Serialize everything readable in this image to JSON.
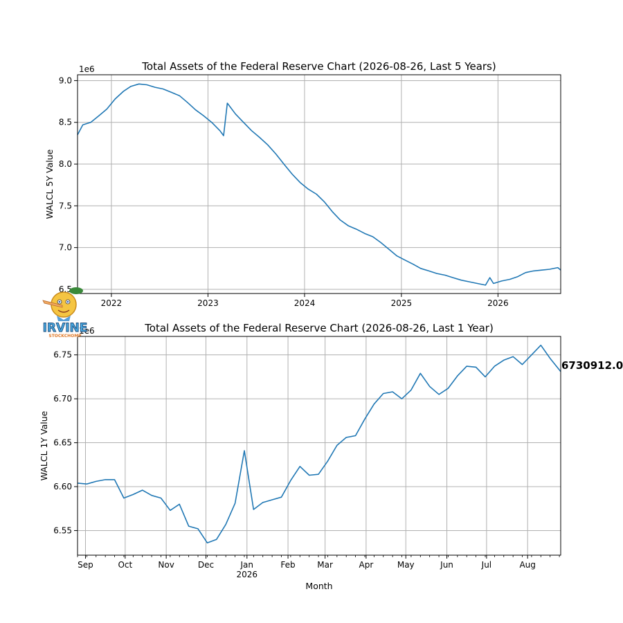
{
  "colors": {
    "line": "#1f77b4",
    "grid": "#b0b0b0",
    "axis": "#000000",
    "background": "#ffffff"
  },
  "logo": {
    "text": "IRVINE",
    "subtext": "STOCKCHOMP"
  },
  "chart_data": [
    {
      "type": "line",
      "title": "Total Assets of the Federal Reserve Chart (2026-08-26, Last 5 Years)",
      "xlabel": "",
      "ylabel": "WALCL 5Y Value",
      "y_multiplier": "1e6",
      "grid": true,
      "xlim": [
        "2021-08-26",
        "2026-08-26"
      ],
      "ylim": [
        6.45,
        9.07
      ],
      "x_ticks": [
        {
          "label": "2022",
          "x": "2022-01-01"
        },
        {
          "label": "2023",
          "x": "2023-01-01"
        },
        {
          "label": "2024",
          "x": "2024-01-01"
        },
        {
          "label": "2025",
          "x": "2025-01-01"
        },
        {
          "label": "2026",
          "x": "2026-01-01"
        }
      ],
      "y_ticks": [
        {
          "label": "6.5",
          "y": 6.5
        },
        {
          "label": "7.0",
          "y": 7.0
        },
        {
          "label": "7.5",
          "y": 7.5
        },
        {
          "label": "8.0",
          "y": 8.0
        },
        {
          "label": "8.5",
          "y": 8.5
        },
        {
          "label": "9.0",
          "y": 9.0
        }
      ],
      "series": [
        {
          "x": [
            "2021-08-26",
            "2021-09-15",
            "2021-10-15",
            "2021-11-15",
            "2021-12-15",
            "2022-01-15",
            "2022-02-15",
            "2022-03-15",
            "2022-04-15",
            "2022-05-15",
            "2022-06-15",
            "2022-07-15",
            "2022-08-15",
            "2022-09-15",
            "2022-10-15",
            "2022-11-15",
            "2022-12-15",
            "2023-01-15",
            "2023-02-15",
            "2023-03-01",
            "2023-03-15",
            "2023-04-15",
            "2023-05-15",
            "2023-06-15",
            "2023-07-15",
            "2023-08-15",
            "2023-09-15",
            "2023-10-15",
            "2023-11-15",
            "2023-12-15",
            "2024-01-15",
            "2024-02-15",
            "2024-03-15",
            "2024-04-15",
            "2024-05-15",
            "2024-06-15",
            "2024-07-15",
            "2024-08-15",
            "2024-09-15",
            "2024-10-15",
            "2024-11-15",
            "2024-12-15",
            "2025-01-15",
            "2025-02-15",
            "2025-03-15",
            "2025-04-15",
            "2025-05-15",
            "2025-06-15",
            "2025-07-15",
            "2025-08-15",
            "2025-09-15",
            "2025-10-15",
            "2025-11-15",
            "2025-12-01",
            "2025-12-15",
            "2026-01-15",
            "2026-02-15",
            "2026-03-15",
            "2026-04-15",
            "2026-05-15",
            "2026-06-15",
            "2026-07-15",
            "2026-08-15",
            "2026-08-26"
          ],
          "values": [
            8.35,
            8.47,
            8.5,
            8.58,
            8.66,
            8.78,
            8.87,
            8.93,
            8.96,
            8.95,
            8.92,
            8.9,
            8.86,
            8.82,
            8.74,
            8.65,
            8.58,
            8.5,
            8.4,
            8.34,
            8.73,
            8.6,
            8.5,
            8.4,
            8.32,
            8.23,
            8.12,
            8.0,
            7.88,
            7.78,
            7.7,
            7.64,
            7.55,
            7.43,
            7.33,
            7.26,
            7.22,
            7.17,
            7.13,
            7.06,
            6.98,
            6.9,
            6.85,
            6.8,
            6.75,
            6.72,
            6.69,
            6.67,
            6.64,
            6.61,
            6.59,
            6.57,
            6.55,
            6.64,
            6.57,
            6.6,
            6.62,
            6.65,
            6.7,
            6.72,
            6.73,
            6.74,
            6.76,
            6.73
          ]
        }
      ]
    },
    {
      "type": "line",
      "title": "Total Assets of the Federal Reserve Chart (2026-08-26, Last 1 Year)",
      "xlabel": "Month",
      "ylabel": "WALCL 1Y Value",
      "y_multiplier": "1e6",
      "grid": true,
      "xlim": [
        "2025-08-26",
        "2026-08-26"
      ],
      "ylim": [
        6.522,
        6.771
      ],
      "x_ticks": [
        {
          "label": "Sep",
          "x": "2025-09-01"
        },
        {
          "label": "Oct",
          "x": "2025-10-01"
        },
        {
          "label": "Nov",
          "x": "2025-11-01"
        },
        {
          "label": "Dec",
          "x": "2025-12-01"
        },
        {
          "label": "Jan",
          "x": "2026-01-01",
          "sublabel": "2026"
        },
        {
          "label": "Feb",
          "x": "2026-02-01"
        },
        {
          "label": "Mar",
          "x": "2026-03-01"
        },
        {
          "label": "Apr",
          "x": "2026-04-01"
        },
        {
          "label": "May",
          "x": "2026-05-01"
        },
        {
          "label": "Jun",
          "x": "2026-06-01"
        },
        {
          "label": "Jul",
          "x": "2026-07-01"
        },
        {
          "label": "Aug",
          "x": "2026-08-01"
        }
      ],
      "y_ticks": [
        {
          "label": "6.55",
          "y": 6.55
        },
        {
          "label": "6.60",
          "y": 6.6
        },
        {
          "label": "6.65",
          "y": 6.65
        },
        {
          "label": "6.70",
          "y": 6.7
        },
        {
          "label": "6.75",
          "y": 6.75
        }
      ],
      "last_value_label": "6730912.00",
      "series": [
        {
          "x": [
            "2025-08-26",
            "2025-09-02",
            "2025-09-09",
            "2025-09-16",
            "2025-09-23",
            "2025-09-30",
            "2025-10-07",
            "2025-10-14",
            "2025-10-21",
            "2025-10-28",
            "2025-11-04",
            "2025-11-11",
            "2025-11-18",
            "2025-11-25",
            "2025-12-02",
            "2025-12-09",
            "2025-12-16",
            "2025-12-23",
            "2025-12-30",
            "2026-01-06",
            "2026-01-13",
            "2026-01-20",
            "2026-01-27",
            "2026-02-03",
            "2026-02-10",
            "2026-02-17",
            "2026-02-24",
            "2026-03-03",
            "2026-03-10",
            "2026-03-17",
            "2026-03-24",
            "2026-03-31",
            "2026-04-07",
            "2026-04-14",
            "2026-04-21",
            "2026-04-28",
            "2026-05-05",
            "2026-05-12",
            "2026-05-19",
            "2026-05-26",
            "2026-06-02",
            "2026-06-09",
            "2026-06-16",
            "2026-06-23",
            "2026-06-30",
            "2026-07-07",
            "2026-07-14",
            "2026-07-21",
            "2026-07-28",
            "2026-08-04",
            "2026-08-11",
            "2026-08-18",
            "2026-08-26"
          ],
          "values": [
            6.604,
            6.603,
            6.606,
            6.608,
            6.608,
            6.587,
            6.591,
            6.596,
            6.59,
            6.587,
            6.573,
            6.58,
            6.555,
            6.552,
            6.536,
            6.54,
            6.557,
            6.581,
            6.641,
            6.574,
            6.582,
            6.585,
            6.588,
            6.607,
            6.623,
            6.613,
            6.614,
            6.629,
            6.647,
            6.656,
            6.658,
            6.677,
            6.694,
            6.706,
            6.708,
            6.7,
            6.71,
            6.729,
            6.714,
            6.705,
            6.712,
            6.726,
            6.737,
            6.736,
            6.725,
            6.737,
            6.744,
            6.748,
            6.739,
            6.75,
            6.761,
            6.746,
            6.731
          ]
        }
      ]
    }
  ]
}
